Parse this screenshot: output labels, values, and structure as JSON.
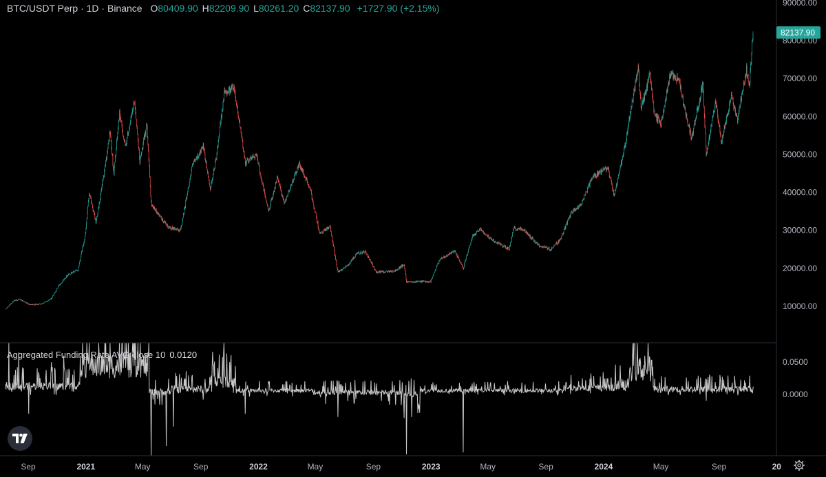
{
  "header": {
    "symbol": "BTC/USDT Perp · 1D · Binance",
    "open_label": "O",
    "open": "80409.90",
    "high_label": "H",
    "high": "82209.90",
    "low_label": "L",
    "low": "80261.20",
    "close_label": "C",
    "close": "82137.90",
    "change": "+1727.90 (+2.15%)"
  },
  "indicator": {
    "name": "Aggregated Funding Rate AVG close 10",
    "value": "0.0120"
  },
  "colors": {
    "up": "#26a69a",
    "down": "#ef5350",
    "funding_line": "#c8c8c8",
    "background": "#000000",
    "axis_text": "#b2b5be",
    "last_price_bg": "#26a69a"
  },
  "icons": {
    "logo": "tradingview-logo-icon",
    "settings": "gear-icon"
  },
  "chart_data": [
    {
      "type": "candlestick",
      "title": "BTC/USDT Perp · 1D · Binance",
      "ylim": [
        0,
        90000
      ],
      "y_ticks": [
        "10000.00",
        "20000.00",
        "30000.00",
        "40000.00",
        "50000.00",
        "60000.00",
        "70000.00",
        "80000.00",
        "90000.00"
      ],
      "last_price": "82137.90",
      "x_ticks": [
        "Sep",
        "2021",
        "May",
        "Sep",
        "2022",
        "May",
        "Sep",
        "2023",
        "May",
        "Sep",
        "2024",
        "May",
        "Sep",
        "20"
      ],
      "x_tick_dates": [
        "2020-09-01",
        "2021-01-01",
        "2021-05-01",
        "2021-09-01",
        "2022-01-01",
        "2022-05-01",
        "2022-09-01",
        "2023-01-01",
        "2023-05-01",
        "2023-09-01",
        "2024-01-01",
        "2024-05-01",
        "2024-09-01",
        "2025-01-01"
      ],
      "close_path": [
        [
          "2020-07-15",
          9200
        ],
        [
          "2020-08-01",
          11400
        ],
        [
          "2020-08-15",
          11800
        ],
        [
          "2020-09-05",
          10300
        ],
        [
          "2020-10-01",
          10700
        ],
        [
          "2020-10-20",
          12000
        ],
        [
          "2020-11-05",
          15500
        ],
        [
          "2020-11-25",
          18500
        ],
        [
          "2020-12-15",
          19500
        ],
        [
          "2020-12-31",
          29000
        ],
        [
          "2021-01-08",
          40000
        ],
        [
          "2021-01-22",
          32000
        ],
        [
          "2021-02-10",
          46000
        ],
        [
          "2021-02-21",
          56000
        ],
        [
          "2021-03-01",
          45000
        ],
        [
          "2021-03-13",
          61000
        ],
        [
          "2021-03-25",
          52000
        ],
        [
          "2021-04-14",
          64000
        ],
        [
          "2021-04-25",
          48000
        ],
        [
          "2021-05-10",
          58000
        ],
        [
          "2021-05-19",
          37000
        ],
        [
          "2021-05-30",
          35000
        ],
        [
          "2021-06-22",
          31000
        ],
        [
          "2021-07-20",
          30000
        ],
        [
          "2021-08-14",
          47000
        ],
        [
          "2021-09-06",
          52000
        ],
        [
          "2021-09-21",
          41000
        ],
        [
          "2021-10-05",
          50000
        ],
        [
          "2021-10-20",
          66000
        ],
        [
          "2021-11-10",
          68000
        ],
        [
          "2021-12-04",
          48000
        ],
        [
          "2021-12-27",
          50000
        ],
        [
          "2022-01-22",
          35000
        ],
        [
          "2022-02-10",
          44000
        ],
        [
          "2022-02-24",
          37000
        ],
        [
          "2022-03-28",
          47500
        ],
        [
          "2022-04-20",
          41000
        ],
        [
          "2022-05-11",
          29000
        ],
        [
          "2022-06-01",
          31000
        ],
        [
          "2022-06-18",
          19000
        ],
        [
          "2022-07-10",
          21000
        ],
        [
          "2022-07-30",
          24000
        ],
        [
          "2022-08-15",
          24300
        ],
        [
          "2022-09-07",
          19000
        ],
        [
          "2022-10-15",
          19200
        ],
        [
          "2022-11-05",
          21000
        ],
        [
          "2022-11-10",
          16500
        ],
        [
          "2022-12-31",
          16500
        ],
        [
          "2023-01-20",
          22500
        ],
        [
          "2023-02-20",
          24500
        ],
        [
          "2023-03-10",
          20000
        ],
        [
          "2023-03-30",
          28500
        ],
        [
          "2023-04-14",
          30500
        ],
        [
          "2023-05-10",
          27500
        ],
        [
          "2023-06-15",
          25000
        ],
        [
          "2023-06-25",
          30500
        ],
        [
          "2023-07-15",
          30300
        ],
        [
          "2023-08-17",
          26000
        ],
        [
          "2023-09-11",
          25000
        ],
        [
          "2023-10-01",
          27500
        ],
        [
          "2023-10-24",
          34500
        ],
        [
          "2023-11-15",
          37000
        ],
        [
          "2023-12-08",
          44000
        ],
        [
          "2024-01-10",
          46500
        ],
        [
          "2024-01-23",
          39000
        ],
        [
          "2024-02-15",
          52000
        ],
        [
          "2024-02-28",
          62000
        ],
        [
          "2024-03-14",
          73000
        ],
        [
          "2024-03-20",
          62000
        ],
        [
          "2024-04-08",
          71000
        ],
        [
          "2024-04-17",
          61000
        ],
        [
          "2024-05-01",
          58000
        ],
        [
          "2024-05-21",
          71000
        ],
        [
          "2024-06-07",
          70000
        ],
        [
          "2024-07-05",
          54000
        ],
        [
          "2024-07-29",
          69000
        ],
        [
          "2024-08-05",
          50000
        ],
        [
          "2024-08-25",
          64000
        ],
        [
          "2024-09-06",
          53000
        ],
        [
          "2024-09-27",
          65500
        ],
        [
          "2024-10-10",
          59000
        ],
        [
          "2024-10-29",
          72500
        ],
        [
          "2024-11-04",
          67500
        ],
        [
          "2024-11-12",
          82137.9
        ]
      ]
    },
    {
      "type": "line",
      "title": "Aggregated Funding Rate AVG close 10",
      "ylim": [
        -0.095,
        0.08
      ],
      "y_ticks": [
        "0.0500",
        "0.0000"
      ],
      "last_value": 0.012,
      "regimes": [
        [
          "2020-07-15",
          0.013,
          0.012,
          -0.015
        ],
        [
          "2020-12-20",
          0.045,
          0.04,
          -0.02
        ],
        [
          "2021-05-15",
          0.004,
          0.01,
          -0.06
        ],
        [
          "2021-07-01",
          0.008,
          0.012,
          -0.02
        ],
        [
          "2021-09-20",
          0.02,
          0.02,
          -0.02
        ],
        [
          "2021-11-15",
          0.006,
          0.006,
          -0.01
        ],
        [
          "2022-05-01",
          0.003,
          0.008,
          -0.02
        ],
        [
          "2022-11-05",
          0.0,
          0.01,
          -0.05
        ],
        [
          "2022-12-10",
          0.006,
          0.006,
          -0.008
        ],
        [
          "2023-10-15",
          0.01,
          0.01,
          -0.01
        ],
        [
          "2024-01-25",
          0.015,
          0.02,
          -0.005
        ],
        [
          "2024-02-25",
          0.04,
          0.04,
          -0.005
        ],
        [
          "2024-04-15",
          0.008,
          0.01,
          -0.01
        ],
        [
          "2024-11-13",
          0.012,
          0.002,
          -0.002
        ]
      ],
      "spikes": [
        [
          "2020-07-22",
          0.08
        ],
        [
          "2020-08-12",
          0.065
        ],
        [
          "2020-09-02",
          -0.03
        ],
        [
          "2020-10-20",
          0.05
        ],
        [
          "2020-11-15",
          0.06
        ],
        [
          "2020-12-25",
          0.08
        ],
        [
          "2021-01-08",
          0.08
        ],
        [
          "2021-02-10",
          0.08
        ],
        [
          "2021-02-21",
          0.08
        ],
        [
          "2021-03-13",
          0.08
        ],
        [
          "2021-04-01",
          0.08
        ],
        [
          "2021-04-14",
          0.08
        ],
        [
          "2021-05-19",
          -0.095
        ],
        [
          "2021-06-20",
          -0.08
        ],
        [
          "2021-07-05",
          -0.05
        ],
        [
          "2021-08-14",
          0.03
        ],
        [
          "2021-10-20",
          0.08
        ],
        [
          "2021-11-01",
          0.05
        ],
        [
          "2021-12-04",
          -0.03
        ],
        [
          "2022-06-18",
          -0.035
        ],
        [
          "2022-11-10",
          -0.093
        ],
        [
          "2023-03-10",
          -0.09
        ],
        [
          "2023-10-24",
          0.03
        ],
        [
          "2024-01-10",
          0.025
        ],
        [
          "2024-02-05",
          0.045
        ],
        [
          "2024-03-05",
          0.08
        ],
        [
          "2024-03-12",
          0.08
        ],
        [
          "2024-03-28",
          0.06
        ],
        [
          "2024-04-10",
          0.03
        ],
        [
          "2024-08-05",
          -0.01
        ]
      ]
    }
  ]
}
